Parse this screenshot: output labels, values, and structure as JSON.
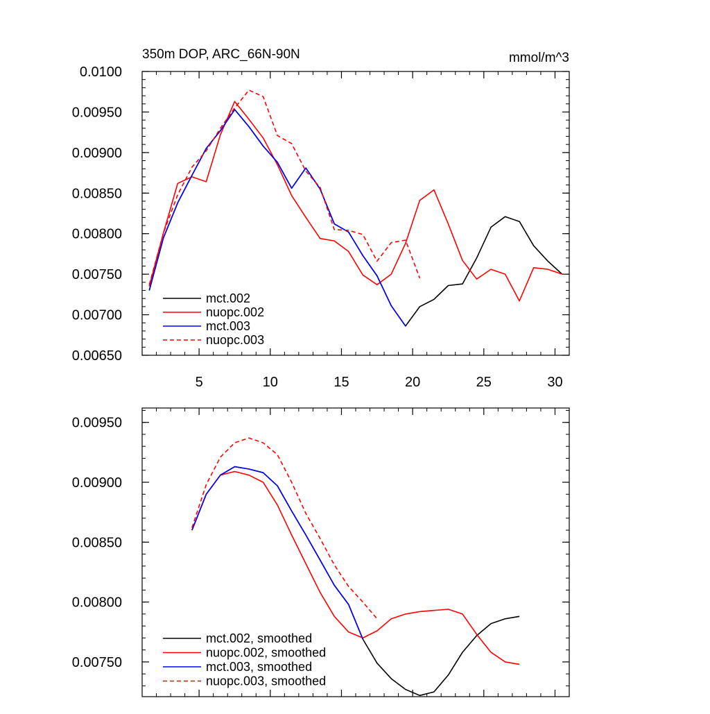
{
  "figure": {
    "title_left": "350m DOP, ARC_66N-90N",
    "title_right": "mmol/m^3"
  },
  "chart_data": [
    {
      "type": "line",
      "title": "350m DOP, ARC_66N-90N",
      "units": "mmol/m^3",
      "xlim": [
        1,
        31
      ],
      "ylim": [
        0.0065,
        0.01
      ],
      "xticks": [
        5,
        10,
        15,
        20,
        25,
        30
      ],
      "xtick_labels": [
        "5",
        "10",
        "15",
        "20",
        "25",
        "30"
      ],
      "yticks": [
        0.0065,
        0.007,
        0.0075,
        0.008,
        0.0085,
        0.009,
        0.0095,
        0.01
      ],
      "ytick_labels": [
        "0.00650",
        "0.00700",
        "0.00750",
        "0.00800",
        "0.00850",
        "0.00900",
        "0.00950",
        "0.0100"
      ],
      "legend_position": "bottom-left",
      "series": [
        {
          "name": "mct.002",
          "color": "#000000",
          "dash": "solid",
          "x": [
            1.5,
            2.5,
            3.5,
            4.5,
            5.5,
            6.5,
            7.5,
            8.5,
            9.5,
            10.5,
            11.5,
            12.5,
            13.5,
            14.5,
            15.5,
            16.5,
            17.5,
            18.5,
            19.5,
            20.5,
            21.5,
            22.5,
            23.5,
            24.5,
            25.5,
            26.5,
            27.5,
            28.5,
            29.5,
            30.5
          ],
          "y": [
            0.0073,
            0.00795,
            0.00838,
            0.00872,
            0.00905,
            0.00927,
            0.00953,
            0.00932,
            0.00908,
            0.00888,
            0.00856,
            0.00881,
            0.00855,
            0.00812,
            0.00802,
            0.00773,
            0.00748,
            0.00711,
            0.00686,
            0.0071,
            0.00719,
            0.00736,
            0.00738,
            0.0077,
            0.00808,
            0.00821,
            0.00815,
            0.00785,
            0.00766,
            0.0075
          ]
        },
        {
          "name": "nuopc.002",
          "color": "#ff0000",
          "dash": "solid",
          "x": [
            1.5,
            2.5,
            3.5,
            4.5,
            5.5,
            6.5,
            7.5,
            8.5,
            9.5,
            10.5,
            11.5,
            12.5,
            13.5,
            14.5,
            15.5,
            16.5,
            17.5,
            18.5,
            19.5,
            20.5,
            21.5,
            22.5,
            23.5,
            24.5,
            25.5,
            26.5,
            27.5,
            28.5,
            29.5,
            30.5
          ],
          "y": [
            0.00735,
            0.00801,
            0.00862,
            0.0087,
            0.00864,
            0.00922,
            0.00963,
            0.00941,
            0.00918,
            0.00885,
            0.00847,
            0.0082,
            0.00794,
            0.00791,
            0.00778,
            0.00749,
            0.00737,
            0.0075,
            0.00788,
            0.00841,
            0.00854,
            0.00812,
            0.00767,
            0.00744,
            0.00756,
            0.0075,
            0.00717,
            0.00758,
            0.00756,
            0.0075
          ]
        },
        {
          "name": "mct.003",
          "color": "#0000ff",
          "dash": "solid",
          "x": [
            1.5,
            2.5,
            3.5,
            4.5,
            5.5,
            6.5,
            7.5,
            8.5,
            9.5,
            10.5,
            11.5,
            12.5,
            13.5,
            14.5,
            15.5,
            16.5,
            17.5,
            18.5,
            19.5
          ],
          "y": [
            0.0073,
            0.00795,
            0.00838,
            0.00872,
            0.00905,
            0.00927,
            0.00953,
            0.00932,
            0.00908,
            0.00888,
            0.00856,
            0.00881,
            0.00855,
            0.00812,
            0.00802,
            0.00773,
            0.00748,
            0.00711,
            0.00686
          ]
        },
        {
          "name": "nuopc.003",
          "color": "#ff0000",
          "dash": "dashed",
          "x": [
            1.5,
            2.5,
            3.5,
            4.5,
            5.5,
            6.5,
            7.5,
            8.5,
            9.5,
            10.5,
            11.5,
            12.5,
            13.5,
            14.5,
            15.5,
            16.5,
            17.5,
            18.5,
            19.5,
            20.5
          ],
          "y": [
            0.00737,
            0.00801,
            0.00848,
            0.00882,
            0.00902,
            0.0093,
            0.00955,
            0.00977,
            0.00969,
            0.00921,
            0.00911,
            0.00877,
            0.00857,
            0.00805,
            0.00804,
            0.00799,
            0.00766,
            0.00789,
            0.00792,
            0.00745
          ]
        }
      ]
    },
    {
      "type": "line",
      "title": "",
      "xlim": [
        1,
        31
      ],
      "ylim": [
        0.00721,
        0.00962
      ],
      "xticks": [
        5,
        10,
        15,
        20,
        25,
        30
      ],
      "xtick_labels": [
        "",
        "",
        "",
        "",
        "",
        ""
      ],
      "yticks": [
        0.0075,
        0.008,
        0.0085,
        0.009,
        0.0095
      ],
      "ytick_labels": [
        "0.00750",
        "0.00800",
        "0.00850",
        "0.00900",
        "0.00950"
      ],
      "legend_position": "bottom-left",
      "series": [
        {
          "name": "mct.002, smoothed",
          "color": "#000000",
          "dash": "solid",
          "x": [
            4.5,
            5.5,
            6.5,
            7.5,
            8.5,
            9.5,
            10.5,
            11.5,
            12.5,
            13.5,
            14.5,
            15.5,
            16.5,
            17.5,
            18.5,
            19.5,
            20.5,
            21.5,
            22.5,
            23.5,
            24.5,
            25.5,
            26.5,
            27.5
          ],
          "y": [
            0.0086,
            0.0089,
            0.00906,
            0.00913,
            0.00911,
            0.00908,
            0.00897,
            0.00876,
            0.00856,
            0.00835,
            0.00814,
            0.00798,
            0.00769,
            0.00749,
            0.00736,
            0.00727,
            0.00722,
            0.00725,
            0.00739,
            0.00758,
            0.00772,
            0.00782,
            0.00786,
            0.00788
          ]
        },
        {
          "name": "nuopc.002, smoothed",
          "color": "#ff0000",
          "dash": "solid",
          "x": [
            4.5,
            5.5,
            6.5,
            7.5,
            8.5,
            9.5,
            10.5,
            11.5,
            12.5,
            13.5,
            14.5,
            15.5,
            16.5,
            17.5,
            18.5,
            19.5,
            20.5,
            21.5,
            22.5,
            23.5,
            24.5,
            25.5,
            26.5,
            27.5
          ],
          "y": [
            0.0086,
            0.0089,
            0.00906,
            0.00909,
            0.00906,
            0.009,
            0.00881,
            0.00856,
            0.00832,
            0.00808,
            0.00788,
            0.00775,
            0.0077,
            0.00776,
            0.00786,
            0.0079,
            0.00792,
            0.00793,
            0.00794,
            0.0079,
            0.00773,
            0.00758,
            0.0075,
            0.00748
          ]
        },
        {
          "name": "mct.003, smoothed",
          "color": "#0000ff",
          "dash": "solid",
          "x": [
            4.5,
            5.5,
            6.5,
            7.5,
            8.5,
            9.5,
            10.5,
            11.5,
            12.5,
            13.5,
            14.5,
            15.5,
            16.5
          ],
          "y": [
            0.0086,
            0.0089,
            0.00906,
            0.00913,
            0.00911,
            0.00908,
            0.00897,
            0.00876,
            0.00856,
            0.00835,
            0.00814,
            0.00798,
            0.00769
          ]
        },
        {
          "name": "nuopc.003, smoothed",
          "color": "#ff0000",
          "dash": "dashed",
          "x": [
            4.5,
            5.5,
            6.5,
            7.5,
            8.5,
            9.5,
            10.5,
            11.5,
            12.5,
            13.5,
            14.5,
            15.5,
            16.5,
            17.5
          ],
          "y": [
            0.00862,
            0.00898,
            0.00921,
            0.00933,
            0.00937,
            0.00933,
            0.00923,
            0.009,
            0.00874,
            0.00853,
            0.00831,
            0.00813,
            0.008,
            0.00786
          ]
        }
      ]
    }
  ]
}
